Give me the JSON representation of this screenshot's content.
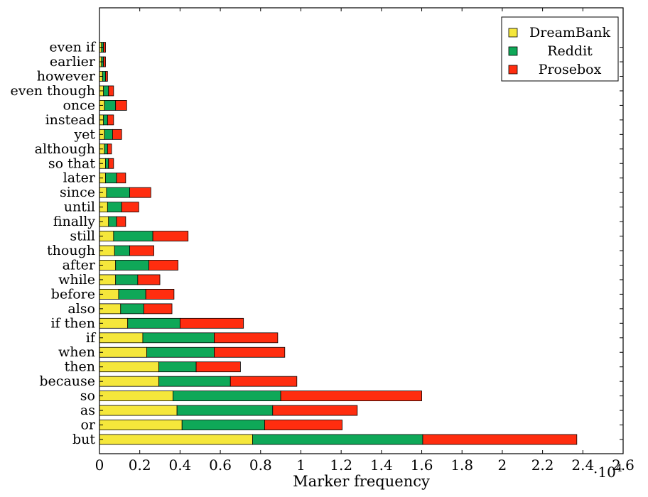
{
  "chart_data": {
    "type": "bar",
    "orientation": "horizontal",
    "stacked": true,
    "categories": [
      "but",
      "or",
      "as",
      "so",
      "because",
      "then",
      "when",
      "if",
      "if then",
      "also",
      "before",
      "while",
      "after",
      "though",
      "still",
      "finally",
      "until",
      "since",
      "later",
      "so that",
      "although",
      "yet",
      "instead",
      "once",
      "even though",
      "however",
      "earlier",
      "even if"
    ],
    "series": [
      {
        "name": "DreamBank",
        "color": "#f5e73b",
        "values": [
          7600,
          4100,
          3850,
          3650,
          2950,
          2950,
          2350,
          2150,
          1400,
          1050,
          950,
          800,
          800,
          750,
          700,
          450,
          400,
          350,
          300,
          300,
          250,
          250,
          200,
          250,
          200,
          150,
          100,
          100
        ]
      },
      {
        "name": "Reddit",
        "color": "#0fa858",
        "values": [
          8450,
          4100,
          4750,
          5350,
          3550,
          1850,
          3350,
          3550,
          2600,
          1150,
          1350,
          1100,
          1650,
          750,
          1950,
          400,
          700,
          1150,
          550,
          150,
          150,
          400,
          200,
          550,
          250,
          150,
          100,
          100
        ]
      },
      {
        "name": "Prosebox",
        "color": "#ff2d0f",
        "values": [
          7650,
          3850,
          4200,
          7000,
          3300,
          2200,
          3500,
          3150,
          3150,
          1400,
          1400,
          1100,
          1450,
          1200,
          1750,
          450,
          850,
          1050,
          450,
          250,
          200,
          450,
          300,
          550,
          250,
          100,
          100,
          100
        ]
      }
    ],
    "xlabel": "Marker frequency",
    "ylabel": "",
    "x_multiplier_label": "·10",
    "x_multiplier_exponent": "4",
    "xlim": [
      0,
      26000
    ],
    "xticks": [
      0,
      2000,
      4000,
      6000,
      8000,
      10000,
      12000,
      14000,
      16000,
      18000,
      20000,
      22000,
      24000,
      26000
    ],
    "xtick_labels": [
      "0",
      "0.2",
      "0.4",
      "0.6",
      "0.8",
      "1",
      "1.2",
      "1.4",
      "1.6",
      "1.8",
      "2",
      "2.2",
      "2.4",
      "2.6"
    ],
    "grid": false,
    "legend_position": "top-right"
  }
}
